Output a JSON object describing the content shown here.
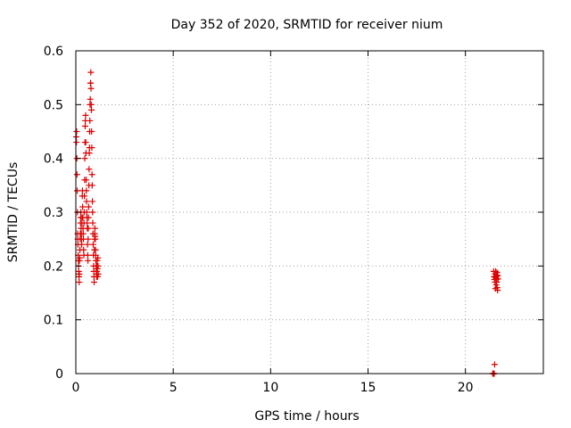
{
  "chart_data": {
    "type": "scatter",
    "title": "Day 352 of 2020, SRMTID for receiver nium",
    "xlabel": "GPS time / hours",
    "ylabel": "SRMTID / TECUs",
    "xlim": [
      0,
      24
    ],
    "ylim": [
      0,
      0.6
    ],
    "xticks": [
      0,
      5,
      10,
      15,
      20
    ],
    "yticks": [
      0,
      0.1,
      0.2,
      0.3,
      0.4,
      0.5,
      0.6
    ],
    "ytick_labels": [
      "0",
      "0.1",
      "0.2",
      "0.3",
      "0.4",
      "0.5",
      "0.6"
    ],
    "grid": true,
    "marker": "+",
    "marker_color": "#dd0000",
    "series": [
      {
        "points": [
          [
            0.02,
            0.44
          ],
          [
            0.03,
            0.43
          ],
          [
            0.04,
            0.45
          ],
          [
            0.05,
            0.4
          ],
          [
            0.06,
            0.37
          ],
          [
            0.07,
            0.34
          ],
          [
            0.08,
            0.3
          ],
          [
            0.09,
            0.26
          ],
          [
            0.1,
            0.25
          ],
          [
            0.11,
            0.24
          ],
          [
            0.12,
            0.22
          ],
          [
            0.13,
            0.21
          ],
          [
            0.14,
            0.2
          ],
          [
            0.15,
            0.19
          ],
          [
            0.16,
            0.18
          ],
          [
            0.17,
            0.17
          ],
          [
            0.18,
            0.185
          ],
          [
            0.19,
            0.21
          ],
          [
            0.2,
            0.215
          ],
          [
            0.21,
            0.23
          ],
          [
            0.22,
            0.25
          ],
          [
            0.23,
            0.26
          ],
          [
            0.24,
            0.28
          ],
          [
            0.25,
            0.29
          ],
          [
            0.26,
            0.3
          ],
          [
            0.27,
            0.27
          ],
          [
            0.28,
            0.26
          ],
          [
            0.29,
            0.25
          ],
          [
            0.3,
            0.24
          ],
          [
            0.31,
            0.28
          ],
          [
            0.32,
            0.29
          ],
          [
            0.33,
            0.33
          ],
          [
            0.34,
            0.34
          ],
          [
            0.35,
            0.31
          ],
          [
            0.36,
            0.29
          ],
          [
            0.37,
            0.27
          ],
          [
            0.38,
            0.26
          ],
          [
            0.39,
            0.25
          ],
          [
            0.4,
            0.23
          ],
          [
            0.41,
            0.22
          ],
          [
            0.42,
            0.28
          ],
          [
            0.43,
            0.3
          ],
          [
            0.44,
            0.33
          ],
          [
            0.45,
            0.36
          ],
          [
            0.46,
            0.4
          ],
          [
            0.47,
            0.43
          ],
          [
            0.48,
            0.46
          ],
          [
            0.49,
            0.47
          ],
          [
            0.5,
            0.48
          ],
          [
            0.51,
            0.43
          ],
          [
            0.52,
            0.41
          ],
          [
            0.53,
            0.36
          ],
          [
            0.54,
            0.34
          ],
          [
            0.55,
            0.32
          ],
          [
            0.56,
            0.3
          ],
          [
            0.57,
            0.29
          ],
          [
            0.58,
            0.28
          ],
          [
            0.59,
            0.27
          ],
          [
            0.6,
            0.24
          ],
          [
            0.61,
            0.22
          ],
          [
            0.62,
            0.21
          ],
          [
            0.63,
            0.25
          ],
          [
            0.64,
            0.27
          ],
          [
            0.65,
            0.29
          ],
          [
            0.66,
            0.31
          ],
          [
            0.67,
            0.35
          ],
          [
            0.68,
            0.38
          ],
          [
            0.69,
            0.41
          ],
          [
            0.7,
            0.42
          ],
          [
            0.71,
            0.45
          ],
          [
            0.72,
            0.47
          ],
          [
            0.73,
            0.5
          ],
          [
            0.74,
            0.51
          ],
          [
            0.75,
            0.54
          ],
          [
            0.76,
            0.54
          ],
          [
            0.77,
            0.56
          ],
          [
            0.78,
            0.53
          ],
          [
            0.79,
            0.5
          ],
          [
            0.8,
            0.49
          ],
          [
            0.81,
            0.45
          ],
          [
            0.82,
            0.42
          ],
          [
            0.83,
            0.37
          ],
          [
            0.84,
            0.35
          ],
          [
            0.85,
            0.32
          ],
          [
            0.86,
            0.3
          ],
          [
            0.87,
            0.28
          ],
          [
            0.88,
            0.26
          ],
          [
            0.89,
            0.24
          ],
          [
            0.9,
            0.22
          ],
          [
            0.91,
            0.2
          ],
          [
            0.92,
            0.19
          ],
          [
            0.93,
            0.18
          ],
          [
            0.94,
            0.17
          ],
          [
            0.95,
            0.23
          ],
          [
            0.96,
            0.25
          ],
          [
            0.97,
            0.26
          ],
          [
            0.98,
            0.27
          ],
          [
            0.99,
            0.255
          ],
          [
            1.0,
            0.25
          ],
          [
            1.01,
            0.23
          ],
          [
            1.02,
            0.22
          ],
          [
            1.03,
            0.21
          ],
          [
            1.04,
            0.2
          ],
          [
            1.05,
            0.19
          ],
          [
            1.06,
            0.185
          ],
          [
            1.07,
            0.18
          ],
          [
            1.08,
            0.19
          ],
          [
            1.09,
            0.2
          ],
          [
            1.1,
            0.21
          ],
          [
            1.11,
            0.195
          ],
          [
            1.12,
            0.18
          ],
          [
            1.13,
            0.215
          ],
          [
            1.14,
            0.2
          ],
          [
            1.15,
            0.185
          ],
          [
            21.4,
            0.0
          ],
          [
            21.42,
            0.0
          ],
          [
            21.44,
            0.0
          ],
          [
            21.46,
            0.0
          ],
          [
            21.48,
            0.0
          ],
          [
            21.5,
            0.017
          ],
          [
            21.45,
            0.19
          ],
          [
            21.47,
            0.18
          ],
          [
            21.49,
            0.175
          ],
          [
            21.51,
            0.18
          ],
          [
            21.53,
            0.185
          ],
          [
            21.55,
            0.19
          ],
          [
            21.57,
            0.18
          ],
          [
            21.59,
            0.175
          ],
          [
            21.61,
            0.17
          ],
          [
            21.63,
            0.16
          ],
          [
            21.65,
            0.155
          ],
          [
            21.52,
            0.17
          ],
          [
            21.56,
            0.178
          ],
          [
            21.6,
            0.183
          ],
          [
            21.62,
            0.188
          ],
          [
            21.58,
            0.165
          ],
          [
            21.54,
            0.158
          ],
          [
            21.66,
            0.182
          ],
          [
            21.68,
            0.176
          ]
        ]
      }
    ]
  }
}
